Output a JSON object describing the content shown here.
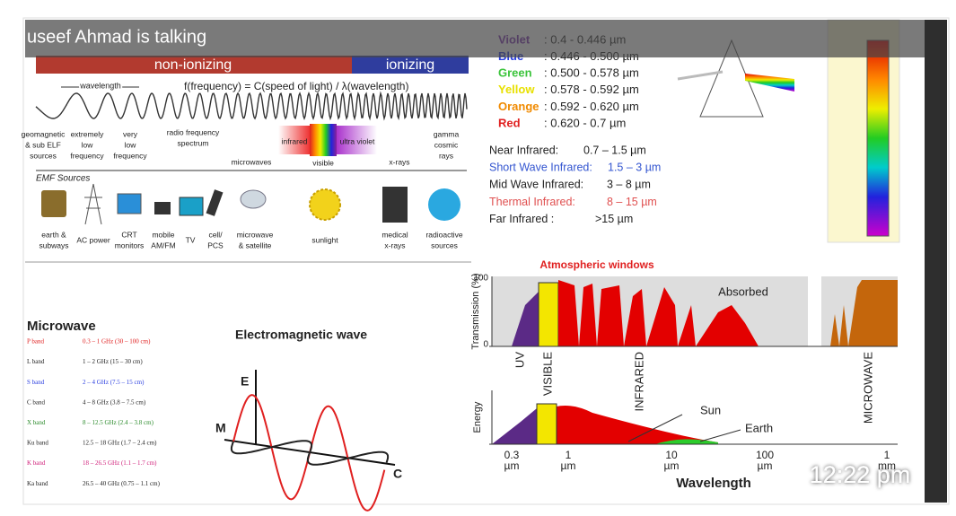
{
  "call": {
    "speaker_banner": "useef Ahmad is talking",
    "time": "12:22 pm"
  },
  "spectrum": {
    "non_ionizing": "non-ionizing",
    "ionizing": "ionizing",
    "wavelength": "wavelength",
    "formula": "f(frequency) = C(speed of light) / λ(wavelength)",
    "bands": [
      [
        "geomagnetic",
        "& sub ELF",
        "sources"
      ],
      [
        "extremely",
        "low",
        "frequency"
      ],
      [
        "very",
        "low",
        "frequency"
      ],
      [
        "radio frequency",
        "spectrum"
      ],
      [
        "microwaves"
      ],
      [
        "infrared"
      ],
      [
        "visible"
      ],
      [
        "ultra violet"
      ],
      [
        "x-rays"
      ],
      [
        "gamma",
        "cosmic",
        "rays"
      ]
    ],
    "emf_sources": "EMF Sources",
    "sources": [
      [
        "earth &",
        "subways"
      ],
      [
        "AC power"
      ],
      [
        "CRT",
        "monitors"
      ],
      [
        "mobile",
        "AM/FM"
      ],
      [
        "TV"
      ],
      [
        "cell/",
        "PCS"
      ],
      [
        "microwave",
        "& satellite"
      ],
      [
        "sunlight"
      ],
      [
        "medical",
        "x-rays"
      ],
      [
        "radioactive",
        "sources"
      ]
    ]
  },
  "visible_colors": [
    {
      "name": "Violet",
      "range": ": 0.4 - 0.446 µm"
    },
    {
      "name": "Blue",
      "range": ": 0.446 - 0.500 µm"
    },
    {
      "name": "Green",
      "range": ": 0.500 - 0.578 µm"
    },
    {
      "name": "Yellow",
      "range": ": 0.578 - 0.592 µm"
    },
    {
      "name": "Orange",
      "range": ": 0.592 - 0.620 µm"
    },
    {
      "name": "Red",
      "range": ": 0.620 - 0.7 µm"
    }
  ],
  "infrared": [
    {
      "name": "Near Infrared:",
      "range": "0.7 – 1.5 µm"
    },
    {
      "name": "Short Wave Infrared:",
      "range": "1.5 – 3 µm"
    },
    {
      "name": "Mid Wave Infrared:",
      "range": "3 – 8 µm"
    },
    {
      "name": "Thermal Infrared:",
      "range": "8 – 15 µm"
    },
    {
      "name": "Far Infrared :",
      "range": ">15 µm"
    }
  ],
  "microwave": {
    "title": "Microwave",
    "rows": [
      [
        "P band",
        "0.3 – 1 GHz (30 – 100 cm)"
      ],
      [
        "L band",
        "1 – 2 GHz (15 – 30 cm)"
      ],
      [
        "S band",
        "2 – 4 GHz (7.5 – 15 cm)"
      ],
      [
        "C band",
        "4 – 8 GHz (3.8 – 7.5 cm)"
      ],
      [
        "X band",
        "8 – 12.5 GHz (2.4 – 3.8 cm)"
      ],
      [
        "Ku band",
        "12.5 – 18 GHz (1.7 – 2.4 cm)"
      ],
      [
        "K band",
        "18 – 26.5 GHz (1.1 – 1.7 cm)"
      ],
      [
        "Ka band",
        "26.5 – 40 GHz (0.75 – 1.1 cm)"
      ]
    ]
  },
  "em_wave": {
    "title": "Electromagnetic wave",
    "e_label": "E",
    "m_label": "M",
    "c_label": "C"
  },
  "atmospheric": {
    "title": "Atmospheric windows",
    "y_label": "Transmission (%)",
    "y_top": "100",
    "y_bottom": "0",
    "absorbed": "Absorbed",
    "regions": [
      "UV",
      "VISIBLE",
      "INFRARED",
      "MICROWAVE"
    ],
    "energy": "Energy",
    "sun": "Sun",
    "earth": "Earth",
    "ticks": [
      [
        "0.3",
        "µm"
      ],
      [
        "1",
        "µm"
      ],
      [
        "10",
        "µm"
      ],
      [
        "100",
        "µm"
      ],
      [
        "1",
        "mm"
      ]
    ],
    "x_label": "Wavelength"
  }
}
